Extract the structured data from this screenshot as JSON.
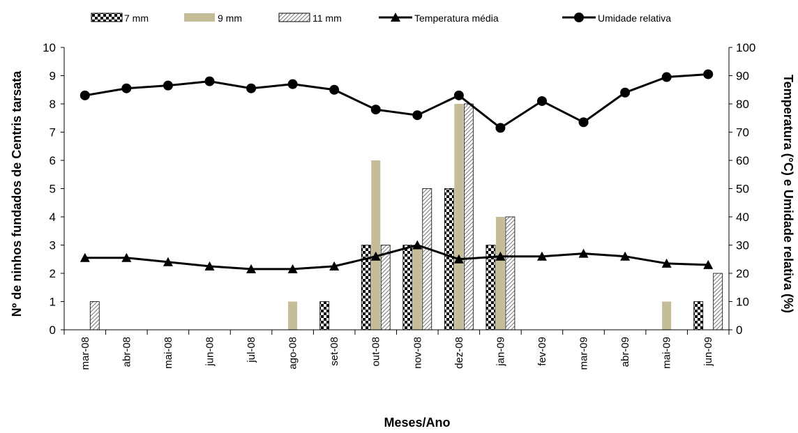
{
  "chart_data": {
    "type": "bar",
    "title": "",
    "xlabel": "Meses/Ano",
    "ylabel": "Nº de ninhos fundados de Centris tarsata",
    "y2label": "Temperatura (°C) e Umidade relativa (%)",
    "ylim": [
      0,
      10
    ],
    "y2lim": [
      0,
      100
    ],
    "yticks": [
      "0",
      "1",
      "2",
      "3",
      "4",
      "5",
      "6",
      "7",
      "8",
      "9",
      "10"
    ],
    "y2ticks": [
      "0",
      "10",
      "20",
      "30",
      "40",
      "50",
      "60",
      "70",
      "80",
      "90",
      "100"
    ],
    "categories": [
      "mar-08",
      "abr-08",
      "mai-08",
      "jun-08",
      "jul-08",
      "ago-08",
      "set-08",
      "out-08",
      "nov-08",
      "dez-08",
      "jan-09",
      "fev-09",
      "mar-09",
      "abr-09",
      "mai-09",
      "jun-09"
    ],
    "legend_position": "top",
    "grid": false,
    "bar_series": [
      {
        "name": "7 mm",
        "pattern": "checker",
        "values": [
          0,
          0,
          0,
          0,
          0,
          0,
          1,
          3,
          3,
          5,
          3,
          0,
          0,
          0,
          0,
          1
        ]
      },
      {
        "name": "9 mm",
        "color": "#c4bd97",
        "values": [
          0,
          0,
          0,
          0,
          0,
          1,
          0,
          6,
          3,
          8,
          4,
          0,
          0,
          0,
          1,
          0
        ]
      },
      {
        "name": "11 mm",
        "pattern": "diagonal-hatch",
        "values": [
          1,
          0,
          0,
          0,
          0,
          0,
          0,
          3,
          5,
          8,
          4,
          0,
          0,
          0,
          0,
          2
        ]
      }
    ],
    "line_series": [
      {
        "name": "Temperatura média",
        "marker": "triangle",
        "axis": "right",
        "values": [
          25.5,
          25.5,
          24,
          22.5,
          21.5,
          21.5,
          22.5,
          26,
          30,
          25,
          26,
          26,
          27,
          26,
          23.5,
          23
        ]
      },
      {
        "name": "Umidade relativa",
        "marker": "circle",
        "axis": "right",
        "values": [
          83,
          85.5,
          86.5,
          88,
          85.5,
          87,
          85,
          78,
          76,
          83,
          71.5,
          81,
          73.5,
          84,
          89.5,
          90.5
        ]
      }
    ]
  }
}
